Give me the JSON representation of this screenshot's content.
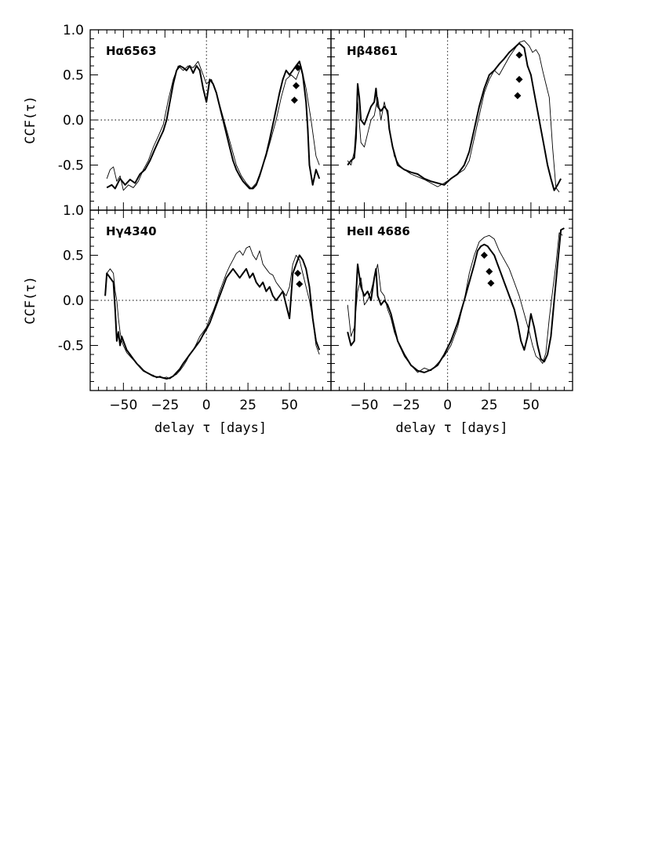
{
  "chart_data": [
    {
      "type": "line",
      "panel_position": "top-left",
      "label": "Hα6563",
      "ylabel": "CCF(τ)",
      "xlabel": "",
      "xlim": [
        -70,
        75
      ],
      "ylim": [
        -1.0,
        1.0
      ],
      "x_ticks": [],
      "y_ticks": [
        1.0,
        0.5,
        0.0,
        -0.5
      ],
      "zero_lines": true,
      "series": [
        {
          "style": "thick",
          "x": [
            -60,
            -57,
            -55,
            -52,
            -49,
            -46,
            -43,
            -40,
            -37,
            -34,
            -31,
            -28,
            -26,
            -24,
            -22,
            -20,
            -18,
            -16,
            -14,
            -12,
            -10,
            -8,
            -6,
            -4,
            -2,
            0,
            2,
            4,
            6,
            8,
            10,
            12,
            14,
            16,
            18,
            20,
            22,
            24,
            26,
            28,
            30,
            32,
            34,
            36,
            38,
            40,
            42,
            44,
            46,
            48,
            50,
            52,
            54,
            56,
            58,
            60,
            61,
            62,
            64,
            66,
            68
          ],
          "y": [
            -0.75,
            -0.72,
            -0.76,
            -0.65,
            -0.72,
            -0.66,
            -0.7,
            -0.6,
            -0.55,
            -0.45,
            -0.32,
            -0.2,
            -0.12,
            0.0,
            0.2,
            0.4,
            0.55,
            0.6,
            0.58,
            0.55,
            0.6,
            0.52,
            0.6,
            0.55,
            0.35,
            0.2,
            0.45,
            0.4,
            0.3,
            0.15,
            0.0,
            -0.15,
            -0.3,
            -0.45,
            -0.55,
            -0.62,
            -0.68,
            -0.72,
            -0.76,
            -0.76,
            -0.72,
            -0.62,
            -0.5,
            -0.38,
            -0.22,
            -0.05,
            0.12,
            0.3,
            0.45,
            0.55,
            0.5,
            0.55,
            0.6,
            0.65,
            0.5,
            0.2,
            -0.1,
            -0.5,
            -0.72,
            -0.55,
            -0.65
          ]
        },
        {
          "style": "thin",
          "x": [
            -60,
            -58,
            -56,
            -54,
            -52,
            -50,
            -47,
            -44,
            -41,
            -38,
            -35,
            -32,
            -29,
            -26,
            -23,
            -20,
            -17,
            -14,
            -11,
            -8,
            -5,
            -2,
            0,
            3,
            6,
            9,
            12,
            15,
            18,
            21,
            24,
            27,
            30,
            33,
            36,
            39,
            42,
            45,
            48,
            51,
            54,
            57,
            60,
            63,
            66,
            68
          ],
          "y": [
            -0.65,
            -0.55,
            -0.52,
            -0.68,
            -0.62,
            -0.78,
            -0.72,
            -0.75,
            -0.68,
            -0.55,
            -0.45,
            -0.3,
            -0.18,
            -0.05,
            0.22,
            0.45,
            0.6,
            0.55,
            0.6,
            0.58,
            0.65,
            0.5,
            0.4,
            0.45,
            0.3,
            0.1,
            -0.1,
            -0.3,
            -0.5,
            -0.62,
            -0.7,
            -0.76,
            -0.7,
            -0.55,
            -0.4,
            -0.2,
            0.0,
            0.25,
            0.45,
            0.5,
            0.45,
            0.6,
            0.35,
            0.0,
            -0.4,
            -0.5
          ]
        }
      ],
      "markers": {
        "x": [
          53,
          54,
          55
        ],
        "y": [
          0.22,
          0.38,
          0.58
        ]
      }
    },
    {
      "type": "line",
      "panel_position": "top-right",
      "label": "Hβ4861",
      "ylabel": "",
      "xlabel": "",
      "xlim": [
        -70,
        75
      ],
      "ylim": [
        -1.0,
        1.0
      ],
      "x_ticks": [],
      "y_ticks": [],
      "zero_lines": true,
      "series": [
        {
          "style": "thick",
          "x": [
            -60,
            -58,
            -56,
            -55,
            -54,
            -53,
            -52,
            -50,
            -48,
            -46,
            -44,
            -43,
            -42,
            -40,
            -38,
            -36,
            -35,
            -33,
            -30,
            -26,
            -22,
            -18,
            -14,
            -10,
            -6,
            -2,
            2,
            6,
            10,
            13,
            16,
            19,
            22,
            25,
            28,
            31,
            34,
            37,
            40,
            43,
            46,
            48,
            50,
            52,
            54,
            56,
            58,
            60,
            62,
            64,
            66,
            68
          ],
          "y": [
            -0.5,
            -0.45,
            -0.42,
            -0.2,
            0.4,
            0.25,
            0.0,
            -0.05,
            0.05,
            0.15,
            0.2,
            0.35,
            0.15,
            0.1,
            0.15,
            0.1,
            -0.1,
            -0.3,
            -0.5,
            -0.55,
            -0.58,
            -0.6,
            -0.65,
            -0.68,
            -0.7,
            -0.72,
            -0.65,
            -0.6,
            -0.5,
            -0.35,
            -0.1,
            0.15,
            0.35,
            0.5,
            0.55,
            0.62,
            0.68,
            0.75,
            0.8,
            0.85,
            0.8,
            0.6,
            0.5,
            0.3,
            0.1,
            -0.1,
            -0.3,
            -0.5,
            -0.65,
            -0.78,
            -0.72,
            -0.65
          ]
        },
        {
          "style": "thin",
          "x": [
            -60,
            -58,
            -56,
            -54,
            -52,
            -50,
            -48,
            -46,
            -44,
            -42,
            -40,
            -38,
            -36,
            -34,
            -32,
            -29,
            -26,
            -22,
            -18,
            -14,
            -10,
            -6,
            -2,
            2,
            6,
            10,
            13,
            16,
            19,
            22,
            25,
            28,
            31,
            34,
            37,
            40,
            43,
            46,
            49,
            51,
            53,
            55,
            57,
            59,
            61,
            63,
            65,
            67
          ],
          "y": [
            -0.45,
            -0.5,
            -0.35,
            0.2,
            -0.25,
            -0.3,
            -0.15,
            0.0,
            0.05,
            0.25,
            0.0,
            0.2,
            0.05,
            -0.2,
            -0.4,
            -0.5,
            -0.55,
            -0.6,
            -0.63,
            -0.66,
            -0.7,
            -0.74,
            -0.7,
            -0.65,
            -0.6,
            -0.55,
            -0.45,
            -0.2,
            0.05,
            0.3,
            0.45,
            0.55,
            0.5,
            0.6,
            0.7,
            0.78,
            0.86,
            0.88,
            0.82,
            0.75,
            0.78,
            0.72,
            0.55,
            0.4,
            0.25,
            -0.3,
            -0.75,
            -0.8
          ]
        }
      ],
      "markers": {
        "x": [
          43,
          43,
          42
        ],
        "y": [
          0.72,
          0.45,
          0.27
        ]
      }
    },
    {
      "type": "line",
      "panel_position": "bottom-left",
      "label": "Hγ4340",
      "ylabel": "CCF(τ)",
      "xlabel": "delay τ [days]",
      "xlim": [
        -70,
        75
      ],
      "ylim": [
        -1.0,
        1.0
      ],
      "x_ticks": [
        -50,
        -25,
        0,
        25,
        50
      ],
      "y_ticks": [
        1.0,
        0.5,
        0.0,
        -0.5
      ],
      "zero_lines": true,
      "series": [
        {
          "style": "thick",
          "x": [
            -61,
            -60,
            -58,
            -56,
            -55,
            -54,
            -53,
            -52,
            -51,
            -50,
            -48,
            -46,
            -44,
            -42,
            -40,
            -38,
            -36,
            -34,
            -32,
            -30,
            -28,
            -26,
            -24,
            -22,
            -20,
            -18,
            -16,
            -14,
            -12,
            -10,
            -8,
            -6,
            -4,
            -2,
            0,
            2,
            4,
            6,
            8,
            10,
            12,
            14,
            16,
            18,
            20,
            22,
            24,
            26,
            28,
            30,
            32,
            34,
            36,
            38,
            40,
            42,
            44,
            46,
            48,
            50,
            52,
            54,
            56,
            58,
            60,
            62,
            64,
            66,
            68
          ],
          "y": [
            0.05,
            0.3,
            0.25,
            0.2,
            -0.1,
            -0.45,
            -0.35,
            -0.5,
            -0.4,
            -0.45,
            -0.55,
            -0.6,
            -0.65,
            -0.7,
            -0.74,
            -0.78,
            -0.8,
            -0.82,
            -0.84,
            -0.85,
            -0.85,
            -0.86,
            -0.87,
            -0.86,
            -0.84,
            -0.8,
            -0.76,
            -0.7,
            -0.65,
            -0.6,
            -0.55,
            -0.5,
            -0.45,
            -0.38,
            -0.32,
            -0.25,
            -0.15,
            -0.05,
            0.05,
            0.15,
            0.25,
            0.3,
            0.35,
            0.3,
            0.25,
            0.3,
            0.35,
            0.25,
            0.3,
            0.2,
            0.15,
            0.2,
            0.1,
            0.15,
            0.05,
            0.0,
            0.05,
            0.1,
            -0.05,
            -0.2,
            0.3,
            0.4,
            0.5,
            0.45,
            0.35,
            0.15,
            -0.2,
            -0.45,
            -0.55
          ]
        },
        {
          "style": "thin",
          "x": [
            -60,
            -58,
            -56,
            -55,
            -54,
            -53,
            -52,
            -51,
            -50,
            -48,
            -46,
            -44,
            -42,
            -40,
            -38,
            -36,
            -34,
            -32,
            -30,
            -28,
            -26,
            -24,
            -22,
            -20,
            -18,
            -16,
            -14,
            -12,
            -10,
            -8,
            -6,
            -4,
            -2,
            0,
            2,
            4,
            6,
            8,
            10,
            12,
            14,
            16,
            18,
            20,
            22,
            24,
            26,
            28,
            30,
            32,
            34,
            36,
            38,
            40,
            42,
            44,
            46,
            48,
            50,
            52,
            54,
            56,
            58,
            60,
            62,
            64,
            66,
            68
          ],
          "y": [
            0.3,
            0.35,
            0.3,
            0.1,
            0.0,
            -0.2,
            -0.35,
            -0.45,
            -0.5,
            -0.58,
            -0.62,
            -0.66,
            -0.7,
            -0.73,
            -0.77,
            -0.8,
            -0.82,
            -0.83,
            -0.86,
            -0.84,
            -0.86,
            -0.85,
            -0.87,
            -0.84,
            -0.82,
            -0.78,
            -0.73,
            -0.67,
            -0.6,
            -0.55,
            -0.48,
            -0.4,
            -0.35,
            -0.3,
            -0.2,
            -0.12,
            -0.02,
            0.1,
            0.2,
            0.3,
            0.38,
            0.45,
            0.52,
            0.55,
            0.5,
            0.58,
            0.6,
            0.5,
            0.45,
            0.55,
            0.4,
            0.35,
            0.3,
            0.28,
            0.2,
            0.15,
            0.1,
            0.05,
            0.15,
            0.4,
            0.5,
            0.45,
            0.3,
            0.15,
            0.0,
            -0.2,
            -0.5,
            -0.6
          ]
        }
      ],
      "markers": {
        "x": [
          55,
          56
        ],
        "y": [
          0.3,
          0.18
        ]
      }
    },
    {
      "type": "line",
      "panel_position": "bottom-right",
      "label": "HeII 4686",
      "ylabel": "",
      "xlabel": "delay τ [days]",
      "xlim": [
        -70,
        75
      ],
      "ylim": [
        -1.0,
        1.0
      ],
      "x_ticks": [
        -50,
        -25,
        0,
        25,
        50
      ],
      "y_ticks": [],
      "zero_lines": true,
      "series": [
        {
          "style": "thick",
          "x": [
            -60,
            -58,
            -56,
            -55,
            -54,
            -52,
            -50,
            -48,
            -46,
            -44,
            -43,
            -42,
            -40,
            -38,
            -36,
            -34,
            -32,
            -30,
            -26,
            -22,
            -18,
            -14,
            -10,
            -6,
            -2,
            2,
            6,
            10,
            13,
            16,
            18,
            20,
            22,
            24,
            26,
            28,
            30,
            32,
            34,
            36,
            38,
            40,
            42,
            44,
            46,
            48,
            50,
            52,
            54,
            56,
            58,
            60,
            62,
            64,
            66,
            68,
            70
          ],
          "y": [
            -0.35,
            -0.5,
            -0.45,
            0.05,
            0.4,
            0.15,
            0.05,
            0.1,
            0.0,
            0.25,
            0.35,
            0.05,
            -0.05,
            0.0,
            -0.05,
            -0.15,
            -0.3,
            -0.45,
            -0.6,
            -0.72,
            -0.78,
            -0.8,
            -0.77,
            -0.72,
            -0.6,
            -0.45,
            -0.25,
            0.0,
            0.2,
            0.4,
            0.55,
            0.6,
            0.62,
            0.6,
            0.55,
            0.5,
            0.4,
            0.3,
            0.2,
            0.1,
            0.0,
            -0.1,
            -0.25,
            -0.45,
            -0.55,
            -0.4,
            -0.15,
            -0.3,
            -0.5,
            -0.65,
            -0.68,
            -0.6,
            -0.4,
            0.0,
            0.4,
            0.78,
            0.8
          ]
        },
        {
          "style": "thin",
          "x": [
            -60,
            -58,
            -56,
            -54,
            -52,
            -50,
            -48,
            -46,
            -44,
            -42,
            -40,
            -38,
            -36,
            -34,
            -32,
            -29,
            -26,
            -22,
            -18,
            -14,
            -10,
            -6,
            -2,
            2,
            6,
            10,
            13,
            16,
            19,
            22,
            25,
            28,
            31,
            34,
            37,
            40,
            43,
            46,
            49,
            51,
            53,
            55,
            57,
            59,
            61,
            63,
            65,
            67,
            69
          ],
          "y": [
            -0.05,
            -0.4,
            -0.3,
            0.1,
            0.25,
            -0.05,
            0.0,
            0.1,
            0.25,
            0.4,
            0.1,
            0.05,
            -0.1,
            -0.2,
            -0.35,
            -0.5,
            -0.62,
            -0.72,
            -0.8,
            -0.75,
            -0.78,
            -0.7,
            -0.62,
            -0.5,
            -0.3,
            0.0,
            0.3,
            0.5,
            0.65,
            0.7,
            0.72,
            0.68,
            0.55,
            0.45,
            0.35,
            0.2,
            0.05,
            -0.15,
            -0.35,
            -0.5,
            -0.62,
            -0.65,
            -0.7,
            -0.58,
            -0.2,
            0.1,
            0.4,
            0.75,
            0.72
          ]
        }
      ],
      "markers": {
        "x": [
          22,
          25,
          26
        ],
        "y": [
          0.5,
          0.32,
          0.19
        ]
      }
    }
  ]
}
